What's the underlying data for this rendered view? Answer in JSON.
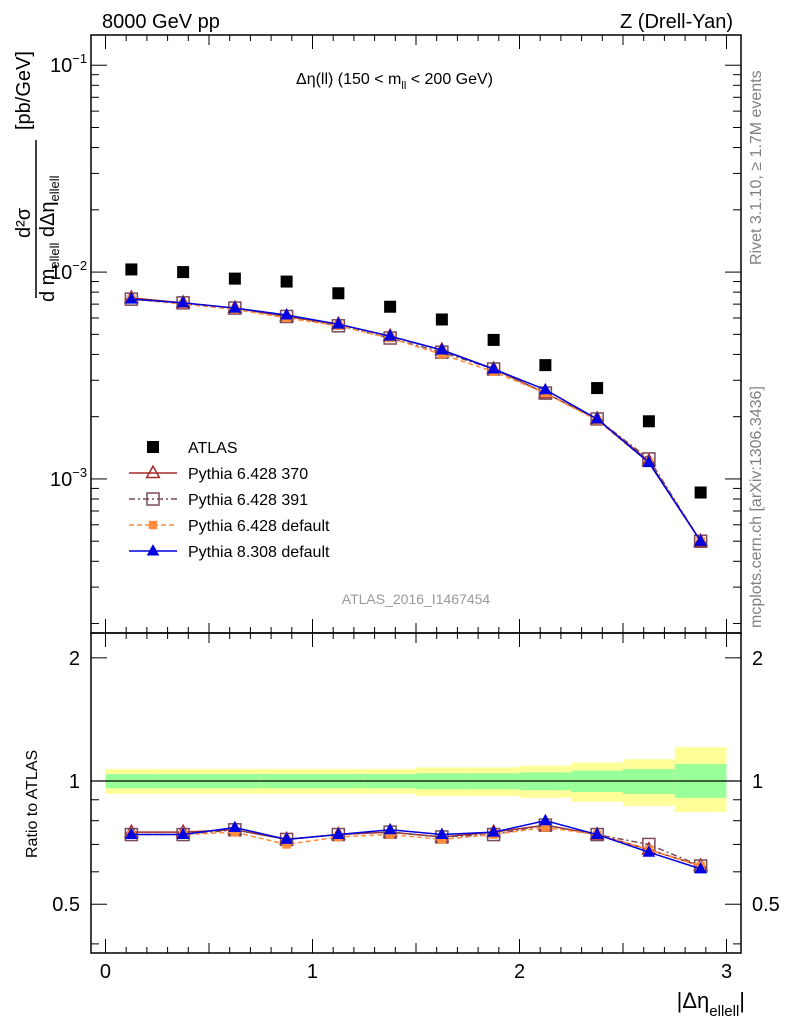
{
  "header": {
    "left": "8000 GeV pp",
    "right": "Z (Drell-Yan)"
  },
  "top_panel": {
    "plot_title": "Δη(ll) (150 < m",
    "plot_title_sub": "ll",
    "plot_title_tail": " < 200 GeV)",
    "ylabel": "[pb/GeV]",
    "ylabel_frac_top": "d²σ",
    "ylabel_frac_bottom": "d m",
    "ylabel_frac_bottom_sub": "ellell",
    "ylabel_frac_bottom2": " dΔη",
    "ylabel_frac_bottom2_sub": "ellell",
    "yticks": [
      "10",
      "10",
      "10"
    ],
    "ytick_exps": [
      "−1",
      "−2",
      "−3"
    ],
    "watermark": "ATLAS_2016_I1467454"
  },
  "ratio_panel": {
    "ylabel": "Ratio to ATLAS",
    "yticks": [
      "2",
      "1",
      "0.5"
    ]
  },
  "xaxis": {
    "ticks": [
      "0",
      "1",
      "2",
      "3"
    ],
    "label": "|Δη",
    "label_sub": "ellell",
    "label_tail": "|"
  },
  "side_labels": {
    "rivet": "Rivet 3.1.10, ≥ 1.7M events",
    "mcplots": "mcplots.cern.ch [arXiv:1306.3436]"
  },
  "legend": [
    {
      "label": "ATLAS",
      "color": "#000000",
      "marker": "square-filled"
    },
    {
      "label": "Pythia 6.428 370",
      "color": "#a52a2a",
      "marker": "triangle-open"
    },
    {
      "label": "Pythia 6.428 391",
      "color": "#7a4a5a",
      "marker": "square-open"
    },
    {
      "label": "Pythia 6.428 default",
      "color": "#ff8c3a",
      "marker": "square-filled-small"
    },
    {
      "label": "Pythia 8.308 default",
      "color": "#0000e0",
      "marker": "triangle-filled"
    }
  ],
  "chart_data": {
    "type": "scatter",
    "title": "Δη(ll) (150 < m_ll < 200 GeV)",
    "x": [
      0.125,
      0.375,
      0.625,
      0.875,
      1.125,
      1.375,
      1.625,
      1.875,
      2.125,
      2.375,
      2.625,
      2.875
    ],
    "xlim": [
      -0.07,
      3.07
    ],
    "ylim": [
      0.00018,
      0.14
    ],
    "yscale": "log",
    "series": [
      {
        "name": "ATLAS",
        "values": [
          0.0103,
          0.01,
          0.0093,
          0.009,
          0.0079,
          0.0068,
          0.0059,
          0.0047,
          0.00355,
          0.00275,
          0.0019,
          0.00086
        ]
      },
      {
        "name": "Pythia 6.428 370",
        "values": [
          0.0075,
          0.0071,
          0.0067,
          0.0061,
          0.0056,
          0.0049,
          0.0042,
          0.0034,
          0.0026,
          0.00195,
          0.00122,
          0.0005
        ]
      },
      {
        "name": "Pythia 6.428 391",
        "values": [
          0.0074,
          0.0071,
          0.0067,
          0.0061,
          0.0055,
          0.0048,
          0.0041,
          0.0034,
          0.0026,
          0.00195,
          0.00125,
          0.0005
        ]
      },
      {
        "name": "Pythia 6.428 default",
        "values": [
          0.0074,
          0.007,
          0.0066,
          0.006,
          0.0055,
          0.0048,
          0.004,
          0.0033,
          0.0026,
          0.00192,
          0.0012,
          0.0005
        ]
      },
      {
        "name": "Pythia 8.308 default",
        "values": [
          0.0074,
          0.0071,
          0.0067,
          0.0062,
          0.0056,
          0.0049,
          0.0042,
          0.0034,
          0.0027,
          0.00195,
          0.0012,
          0.0005
        ]
      }
    ],
    "ratio": {
      "ylabel": "Ratio to ATLAS",
      "ylim": [
        0.38,
        2.3
      ],
      "yscale": "log",
      "band_inner": [
        [
          0.96,
          1.04
        ],
        [
          0.96,
          1.04
        ],
        [
          0.96,
          1.04
        ],
        [
          0.96,
          1.04
        ],
        [
          0.96,
          1.04
        ],
        [
          0.96,
          1.04
        ],
        [
          0.955,
          1.045
        ],
        [
          0.955,
          1.045
        ],
        [
          0.95,
          1.05
        ],
        [
          0.94,
          1.06
        ],
        [
          0.93,
          1.07
        ],
        [
          0.91,
          1.1
        ]
      ],
      "band_outer": [
        [
          0.93,
          1.07
        ],
        [
          0.93,
          1.07
        ],
        [
          0.93,
          1.07
        ],
        [
          0.93,
          1.07
        ],
        [
          0.93,
          1.07
        ],
        [
          0.93,
          1.07
        ],
        [
          0.92,
          1.08
        ],
        [
          0.92,
          1.08
        ],
        [
          0.91,
          1.09
        ],
        [
          0.89,
          1.11
        ],
        [
          0.87,
          1.13
        ],
        [
          0.84,
          1.21
        ]
      ],
      "series": [
        {
          "name": "Pythia 6.428 370",
          "values": [
            0.75,
            0.75,
            0.76,
            0.72,
            0.74,
            0.75,
            0.73,
            0.75,
            0.78,
            0.74,
            0.68,
            0.62
          ]
        },
        {
          "name": "Pythia 6.428 391",
          "values": [
            0.74,
            0.74,
            0.76,
            0.72,
            0.74,
            0.75,
            0.73,
            0.74,
            0.78,
            0.74,
            0.7,
            0.62
          ]
        },
        {
          "name": "Pythia 6.428 default",
          "values": [
            0.74,
            0.74,
            0.75,
            0.7,
            0.73,
            0.74,
            0.72,
            0.74,
            0.77,
            0.74,
            0.68,
            0.62
          ]
        },
        {
          "name": "Pythia 8.308 default",
          "values": [
            0.74,
            0.74,
            0.77,
            0.72,
            0.74,
            0.76,
            0.74,
            0.75,
            0.8,
            0.74,
            0.67,
            0.61
          ]
        }
      ]
    }
  }
}
